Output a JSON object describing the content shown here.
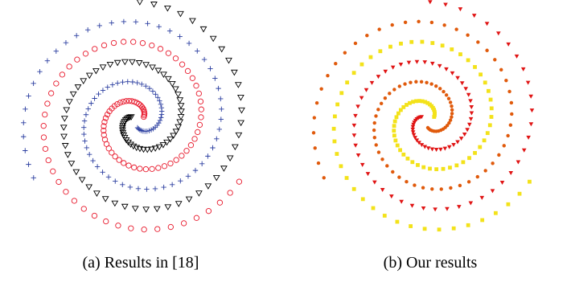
{
  "figure": {
    "captions": [
      "(a) Results in [18]",
      "(b) Our results"
    ]
  },
  "chart_data": [
    {
      "type": "scatter",
      "panel_caption": "(a) Results in [18]",
      "xlim": [
        -1.05,
        1.05
      ],
      "ylim": [
        -1.05,
        1.05
      ],
      "grid": false,
      "axes_visible": false,
      "spiral_model": {
        "r": "0.06 + 0.0924 * t",
        "theta": "phase + 1.15 * t",
        "t_range": [
          0,
          10
        ]
      },
      "series": [
        {
          "marker": "plus",
          "color": "#2b3ea0",
          "phase": -1.571,
          "points": 96
        },
        {
          "marker": "circle-open",
          "color": "#e8192c",
          "phase": 0.524,
          "points": 96
        },
        {
          "marker": "triangle-down-open",
          "color": "#000000",
          "phase": 2.618,
          "points": 96
        }
      ]
    },
    {
      "type": "scatter",
      "panel_caption": "(b) Our results",
      "xlim": [
        -1.05,
        1.05
      ],
      "ylim": [
        -1.05,
        1.05
      ],
      "grid": false,
      "axes_visible": false,
      "spiral_model": {
        "r": "0.06 + 0.0924 * t",
        "theta": "phase + 1.15 * t",
        "t_range": [
          0,
          10
        ]
      },
      "series": [
        {
          "marker": "dot",
          "color": "#e05a0c",
          "phase": -1.571,
          "points": 88
        },
        {
          "marker": "square",
          "color": "#f3e21a",
          "phase": 0.524,
          "points": 88
        },
        {
          "marker": "triangle-down",
          "color": "#e01414",
          "phase": 2.618,
          "points": 88
        }
      ]
    }
  ]
}
